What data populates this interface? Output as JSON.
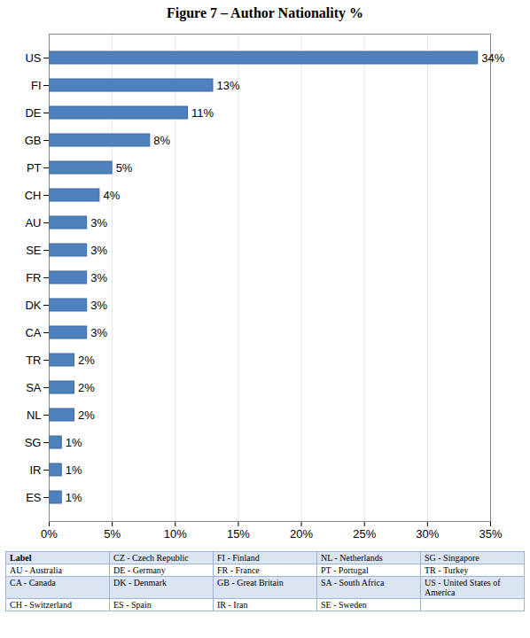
{
  "chart_data": {
    "type": "bar",
    "title": "Figure 7 – Author Nationality %",
    "orientation": "horizontal",
    "categories": [
      "US",
      "FI",
      "DE",
      "GB",
      "PT",
      "CH",
      "AU",
      "SE",
      "FR",
      "DK",
      "CA",
      "TR",
      "SA",
      "NL",
      "SG",
      "IR",
      "ES"
    ],
    "values": [
      34,
      13,
      11,
      8,
      5,
      4,
      3,
      3,
      3,
      3,
      3,
      2,
      2,
      2,
      1,
      1,
      1
    ],
    "value_labels": [
      "34%",
      "13%",
      "11%",
      "8%",
      "5%",
      "4%",
      "3%",
      "3%",
      "3%",
      "3%",
      "3%",
      "2%",
      "2%",
      "2%",
      "1%",
      "1%",
      "1%"
    ],
    "data_labels": true,
    "color": "#4f81bd",
    "xlim": [
      0,
      35
    ],
    "xticks": [
      {
        "value": 0,
        "label": "0%"
      },
      {
        "value": 5,
        "label": "5%"
      },
      {
        "value": 10,
        "label": "10%"
      },
      {
        "value": 15,
        "label": "15%"
      },
      {
        "value": 20,
        "label": "20%"
      },
      {
        "value": 25,
        "label": "25%"
      },
      {
        "value": 30,
        "label": "30%"
      },
      {
        "value": 35,
        "label": "35%"
      }
    ],
    "grid": true
  },
  "legend_table": {
    "rows": [
      [
        "Label",
        "CZ - Czech Republic",
        "FI - Finland",
        "NL - Netherlands",
        "SG - Singapore"
      ],
      [
        "AU - Australia",
        "DE - Germany",
        "FR - France",
        "PT - Portugal",
        "TR - Turkey"
      ],
      [
        "CA - Canada",
        "DK - Denmark",
        "GB - Great Britain",
        "SA - South Africa",
        "US - United States of America"
      ],
      [
        "CH - Switzerland",
        "ES - Spain",
        "IR - Iran",
        "SE - Sweden",
        null
      ]
    ]
  }
}
